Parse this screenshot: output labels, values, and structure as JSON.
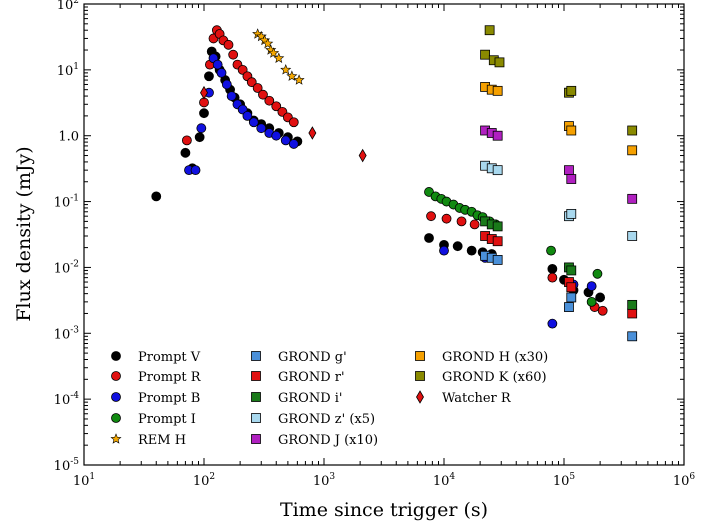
{
  "chart_data": {
    "type": "scatter",
    "title": "",
    "xlabel": "Time since trigger (s)",
    "ylabel": "Flux density (mJy)",
    "xscale": "log",
    "yscale": "log",
    "xlim": [
      10,
      1000000
    ],
    "ylim": [
      1e-05,
      100
    ],
    "x_ticks": [
      {
        "value": 10,
        "base": "10",
        "exp": "1"
      },
      {
        "value": 100,
        "base": "10",
        "exp": "2"
      },
      {
        "value": 1000,
        "base": "10",
        "exp": "3"
      },
      {
        "value": 10000,
        "base": "10",
        "exp": "4"
      },
      {
        "value": 100000,
        "base": "10",
        "exp": "5"
      },
      {
        "value": 1000000,
        "base": "10",
        "exp": "6"
      }
    ],
    "y_ticks": [
      {
        "value": 1e-05,
        "base": "10",
        "exp": "-5"
      },
      {
        "value": 0.0001,
        "base": "10",
        "exp": "-4"
      },
      {
        "value": 0.001,
        "base": "10",
        "exp": "-3"
      },
      {
        "value": 0.01,
        "base": "10",
        "exp": "-2"
      },
      {
        "value": 0.1,
        "base": "10",
        "exp": "-1"
      },
      {
        "value": 1,
        "base": "1.0",
        "exp": ""
      },
      {
        "value": 10,
        "base": "10",
        "exp": "1"
      },
      {
        "value": 100,
        "base": "10",
        "exp": "2"
      }
    ],
    "legend_placement": "lower-left",
    "series": [
      {
        "name": "Prompt V",
        "color": "#000000",
        "marker": "circle",
        "points": [
          [
            40,
            0.12
          ],
          [
            70,
            0.55
          ],
          [
            80,
            0.32
          ],
          [
            92,
            0.95
          ],
          [
            100,
            2.2
          ],
          [
            110,
            8
          ],
          [
            116,
            19
          ],
          [
            125,
            16
          ],
          [
            135,
            10
          ],
          [
            150,
            7
          ],
          [
            165,
            5
          ],
          [
            180,
            3.8
          ],
          [
            200,
            3
          ],
          [
            230,
            2.2
          ],
          [
            260,
            1.7
          ],
          [
            300,
            1.5
          ],
          [
            350,
            1.3
          ],
          [
            420,
            1.1
          ],
          [
            500,
            0.95
          ],
          [
            600,
            0.82
          ],
          [
            7500,
            0.028
          ],
          [
            10000,
            0.022
          ],
          [
            13000,
            0.021
          ],
          [
            17000,
            0.018
          ],
          [
            21000,
            0.017
          ],
          [
            25000,
            0.016
          ],
          [
            80000,
            0.0095
          ],
          [
            100000,
            0.0065
          ],
          [
            120000,
            0.0045
          ],
          [
            160000,
            0.0042
          ],
          [
            200000,
            0.0035
          ]
        ]
      },
      {
        "name": "Prompt R",
        "color": "#e01010",
        "marker": "circle",
        "points": [
          [
            72,
            0.85
          ],
          [
            100,
            3.2
          ],
          [
            112,
            12
          ],
          [
            120,
            30
          ],
          [
            128,
            40
          ],
          [
            135,
            35
          ],
          [
            145,
            28
          ],
          [
            160,
            24
          ],
          [
            175,
            17
          ],
          [
            190,
            12
          ],
          [
            210,
            10
          ],
          [
            230,
            8
          ],
          [
            250,
            6.5
          ],
          [
            280,
            5.3
          ],
          [
            310,
            4.2
          ],
          [
            350,
            3.4
          ],
          [
            400,
            2.8
          ],
          [
            450,
            2.3
          ],
          [
            500,
            1.9
          ],
          [
            560,
            1.6
          ],
          [
            7800,
            0.06
          ],
          [
            10500,
            0.055
          ],
          [
            14000,
            0.05
          ],
          [
            18000,
            0.045
          ],
          [
            80000,
            0.007
          ],
          [
            180000,
            0.0025
          ],
          [
            210000,
            0.0022
          ]
        ]
      },
      {
        "name": "Prompt B",
        "color": "#1010e0",
        "marker": "circle",
        "points": [
          [
            75,
            0.3
          ],
          [
            85,
            0.3
          ],
          [
            95,
            1.3
          ],
          [
            110,
            4.5
          ],
          [
            120,
            15
          ],
          [
            130,
            12
          ],
          [
            140,
            9
          ],
          [
            155,
            6
          ],
          [
            170,
            4
          ],
          [
            190,
            3
          ],
          [
            210,
            2.5
          ],
          [
            230,
            2
          ],
          [
            260,
            1.6
          ],
          [
            300,
            1.3
          ],
          [
            350,
            1.1
          ],
          [
            400,
            1.0
          ],
          [
            480,
            0.85
          ],
          [
            560,
            0.75
          ],
          [
            10000,
            0.018
          ],
          [
            22000,
            0.014
          ],
          [
            80000,
            0.0014
          ],
          [
            120000,
            0.0055
          ],
          [
            170000,
            0.0052
          ]
        ]
      },
      {
        "name": "Prompt I",
        "color": "#118a11",
        "marker": "circle",
        "points": [
          [
            7500,
            0.14
          ],
          [
            8500,
            0.12
          ],
          [
            9500,
            0.11
          ],
          [
            10500,
            0.1
          ],
          [
            12000,
            0.09
          ],
          [
            13500,
            0.08
          ],
          [
            15000,
            0.075
          ],
          [
            17000,
            0.07
          ],
          [
            19000,
            0.062
          ],
          [
            21000,
            0.058
          ],
          [
            24000,
            0.05
          ],
          [
            27000,
            0.045
          ],
          [
            78000,
            0.018
          ],
          [
            110000,
            0.01
          ],
          [
            170000,
            0.003
          ],
          [
            190000,
            0.008
          ]
        ]
      },
      {
        "name": "REM H",
        "color": "#f5a800",
        "marker": "star",
        "points": [
          [
            280,
            35
          ],
          [
            300,
            32
          ],
          [
            320,
            28
          ],
          [
            340,
            25
          ],
          [
            360,
            20
          ],
          [
            380,
            18
          ],
          [
            420,
            15
          ],
          [
            480,
            10
          ],
          [
            540,
            8
          ],
          [
            620,
            7
          ]
        ]
      },
      {
        "name": "GROND g'",
        "color": "#4a90d9",
        "marker": "square",
        "points": [
          [
            22000,
            0.015
          ],
          [
            25000,
            0.014
          ],
          [
            28000,
            0.013
          ],
          [
            110000,
            0.0025
          ],
          [
            115000,
            0.0035
          ],
          [
            370000,
            0.0009
          ]
        ]
      },
      {
        "name": "GROND r'",
        "color": "#e01010",
        "marker": "square",
        "points": [
          [
            22000,
            0.03
          ],
          [
            25000,
            0.027
          ],
          [
            28000,
            0.025
          ],
          [
            110000,
            0.006
          ],
          [
            115000,
            0.005
          ],
          [
            370000,
            0.002
          ]
        ]
      },
      {
        "name": "GROND i'",
        "color": "#1a7a1a",
        "marker": "square",
        "points": [
          [
            22000,
            0.05
          ],
          [
            25000,
            0.045
          ],
          [
            28000,
            0.042
          ],
          [
            110000,
            0.01
          ],
          [
            115000,
            0.009
          ],
          [
            370000,
            0.0027
          ]
        ]
      },
      {
        "name": "GROND z' (x5)",
        "color": "#a8d8ee",
        "marker": "square",
        "points": [
          [
            22000,
            0.35
          ],
          [
            25000,
            0.32
          ],
          [
            28000,
            0.3
          ],
          [
            110000,
            0.06
          ],
          [
            115000,
            0.065
          ],
          [
            370000,
            0.03
          ]
        ]
      },
      {
        "name": "GROND J (x10)",
        "color": "#b020c0",
        "marker": "square",
        "points": [
          [
            22000,
            1.2
          ],
          [
            25000,
            1.1
          ],
          [
            28000,
            1.0
          ],
          [
            110000,
            0.3
          ],
          [
            115000,
            0.22
          ],
          [
            370000,
            0.11
          ]
        ]
      },
      {
        "name": "GROND H (x30)",
        "color": "#f5a000",
        "marker": "square",
        "points": [
          [
            22000,
            5.5
          ],
          [
            25000,
            5.0
          ],
          [
            28000,
            4.8
          ],
          [
            110000,
            1.4
          ],
          [
            115000,
            1.2
          ],
          [
            370000,
            0.6
          ]
        ]
      },
      {
        "name": "GROND K (x60)",
        "color": "#8a8a00",
        "marker": "square",
        "points": [
          [
            22000,
            17
          ],
          [
            24000,
            40
          ],
          [
            26000,
            14
          ],
          [
            29000,
            13
          ],
          [
            110000,
            4.5
          ],
          [
            115000,
            4.8
          ],
          [
            370000,
            1.2
          ]
        ]
      },
      {
        "name": "Watcher R",
        "color": "#e01010",
        "marker": "diamond",
        "points": [
          [
            100,
            4.5
          ],
          [
            800,
            1.1
          ],
          [
            2100,
            0.5
          ]
        ]
      }
    ]
  }
}
